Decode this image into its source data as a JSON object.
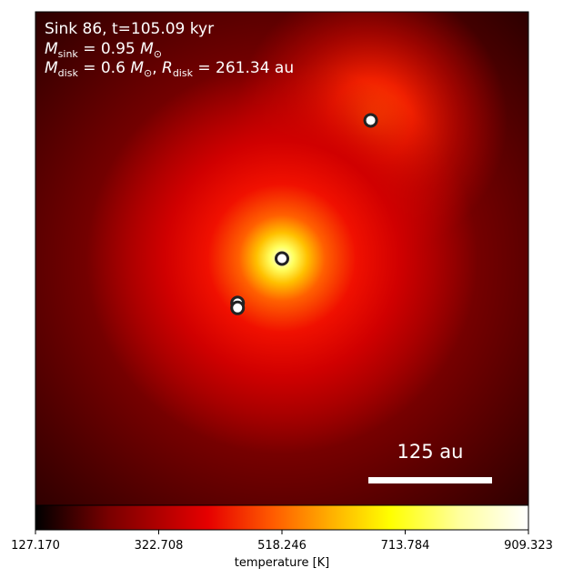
{
  "chart_data": {
    "type": "heatmap",
    "title_lines": {
      "line1": "Sink 86, t=105.09 kyr",
      "line2_var": "M",
      "line2_sub": "sink",
      "line2_rest": " = 0.95 ",
      "line2_unit": "M",
      "line2_unit_sub": "⊙",
      "line3_var1": "M",
      "line3_sub1": "disk",
      "line3_mid1": " = 0.6 ",
      "line3_unit": "M",
      "line3_unit_sub": "⊙",
      "line3_sep": ", ",
      "line3_var2": "R",
      "line3_sub2": "disk",
      "line3_mid2": " = 261.34 au"
    },
    "scale_bar": {
      "label": "125 au",
      "length_au": 125
    },
    "colorbar": {
      "label": "temperature [K]",
      "min": 127.17,
      "max": 909.323,
      "ticks": [
        "127.170",
        "322.708",
        "518.246",
        "713.784",
        "909.323"
      ],
      "colormap": "hot",
      "colors": [
        "#000000",
        "#7a0000",
        "#e60000",
        "#ff5a00",
        "#ffb000",
        "#ffff00",
        "#ffff9e",
        "#ffffff"
      ]
    },
    "sinks": [
      {
        "name": "sink-86",
        "x_frac": 0.5,
        "y_frac": 0.5
      },
      {
        "name": "sink-b",
        "x_frac": 0.68,
        "y_frac": 0.22
      },
      {
        "name": "sink-c",
        "x_frac": 0.41,
        "y_frac": 0.59
      },
      {
        "name": "sink-d",
        "x_frac": 0.41,
        "y_frac": 0.6
      }
    ]
  }
}
